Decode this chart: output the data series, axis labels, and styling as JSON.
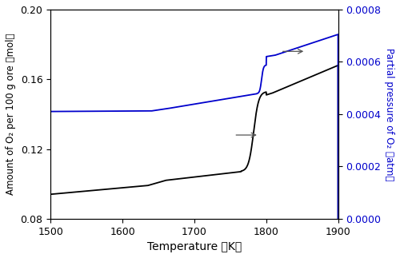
{
  "xlabel": "Temperature （K）",
  "ylabel_left": "Amount of O₂ per 100 g ore （mol）",
  "ylabel_right": "Partial pressure of O₂ （atm）",
  "xlim": [
    1500,
    1900
  ],
  "ylim_left": [
    0.08,
    0.2
  ],
  "ylim_right": [
    0.0,
    0.0008
  ],
  "left_color": "#000000",
  "right_color": "#0000cc",
  "figsize": [
    5.0,
    3.23
  ],
  "dpi": 100,
  "xticks": [
    1500,
    1600,
    1700,
    1800,
    1900
  ],
  "yticks_left": [
    0.08,
    0.12,
    0.16,
    0.2
  ],
  "yticks_right": [
    0.0,
    0.0002,
    0.0004,
    0.0006,
    0.0008
  ]
}
